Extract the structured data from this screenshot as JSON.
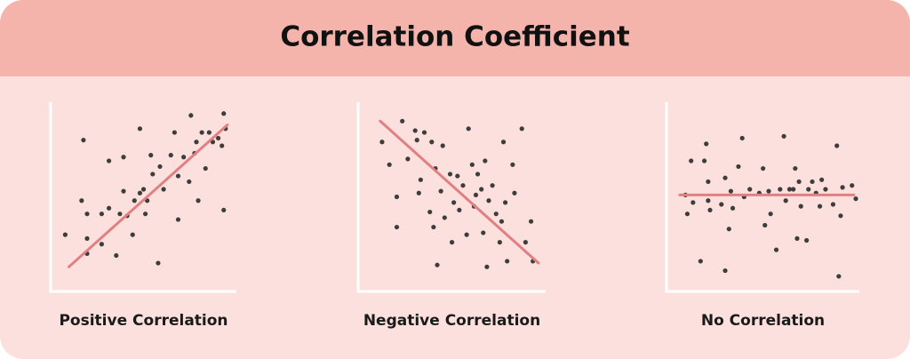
{
  "title": "Correlation Coefficient",
  "chart_data": [
    {
      "type": "scatter",
      "title": "Positive Correlation",
      "color": "#3d3d3d",
      "xlim": [
        0,
        100
      ],
      "ylim": [
        0,
        100
      ],
      "x": [
        8,
        18,
        17,
        20,
        20,
        20,
        28,
        28,
        32,
        32,
        36,
        38,
        40,
        40,
        42,
        45,
        46,
        49,
        49,
        51,
        52,
        53,
        55,
        56,
        59,
        60,
        62,
        66,
        68,
        70,
        70,
        73,
        76,
        77,
        79,
        80,
        81,
        83,
        85,
        87,
        89,
        92,
        94,
        95,
        95,
        96
      ],
      "y": [
        30,
        80,
        48,
        28,
        20,
        41,
        41,
        25,
        69,
        44,
        19,
        41,
        71,
        53,
        40,
        30,
        48,
        86,
        52,
        54,
        41,
        48,
        72,
        62,
        15,
        66,
        54,
        72,
        84,
        61,
        38,
        71,
        58,
        93,
        73,
        79,
        48,
        84,
        65,
        84,
        79,
        81,
        77,
        94,
        43,
        86
      ],
      "trend": {
        "color": "#e17f82",
        "x": [
          10,
          97
        ],
        "y": [
          13,
          88
        ]
      }
    },
    {
      "type": "scatter",
      "title": "Negative Correlation",
      "color": "#3d3d3d",
      "xlim": [
        0,
        100
      ],
      "ylim": [
        0,
        100
      ],
      "x": [
        13,
        17,
        21,
        21,
        24,
        27,
        31,
        32,
        33,
        34,
        36,
        39,
        40,
        41,
        42,
        43,
        45,
        46,
        47,
        50,
        51,
        52,
        54,
        55,
        57,
        59,
        60,
        62,
        63,
        64,
        65,
        67,
        68,
        69,
        70,
        71,
        73,
        75,
        77,
        78,
        79,
        80,
        81,
        84,
        85,
        89,
        91,
        94,
        95
      ],
      "y": [
        79,
        67,
        50,
        34,
        90,
        70,
        85,
        80,
        52,
        59,
        84,
        42,
        79,
        34,
        65,
        14,
        53,
        77,
        39,
        62,
        26,
        47,
        61,
        43,
        56,
        30,
        86,
        67,
        45,
        51,
        62,
        54,
        31,
        69,
        13,
        48,
        56,
        41,
        26,
        37,
        79,
        47,
        16,
        67,
        52,
        86,
        26,
        37,
        16
      ],
      "trend": {
        "color": "#e17f82",
        "x": [
          12,
          98
        ],
        "y": [
          90,
          15
        ]
      }
    },
    {
      "type": "scatter",
      "title": "No Correlation",
      "color": "#3d3d3d",
      "xlim": [
        0,
        100
      ],
      "ylim": [
        0,
        100
      ],
      "x": [
        10,
        11,
        13,
        14,
        18,
        20,
        21,
        22,
        22,
        23,
        29,
        31,
        31,
        33,
        34,
        35,
        38,
        40,
        41,
        44,
        49,
        51,
        52,
        54,
        55,
        58,
        60,
        62,
        63,
        65,
        67,
        68,
        69,
        70,
        71,
        74,
        75,
        77,
        79,
        81,
        82,
        84,
        88,
        90,
        91,
        92,
        93,
        98,
        100
      ],
      "y": [
        51,
        41,
        69,
        47,
        16,
        69,
        78,
        58,
        48,
        43,
        46,
        11,
        60,
        33,
        53,
        44,
        66,
        81,
        50,
        54,
        52,
        65,
        35,
        53,
        41,
        22,
        54,
        82,
        48,
        54,
        54,
        65,
        28,
        58,
        45,
        27,
        54,
        58,
        52,
        45,
        59,
        54,
        46,
        77,
        8,
        40,
        55,
        56,
        49
      ],
      "trend": {
        "color": "#e17f82",
        "x": [
          7,
          99
        ],
        "y": [
          51,
          51
        ]
      }
    }
  ]
}
